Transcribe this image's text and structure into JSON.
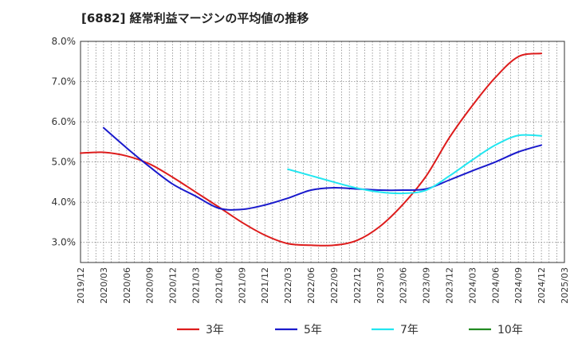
{
  "chart_data": {
    "type": "line",
    "title": "[6882]  経常利益マージンの平均値の推移",
    "xlabel": "",
    "ylabel": "",
    "x_ticks": [
      "2019/12",
      "2020/03",
      "2020/06",
      "2020/09",
      "2020/12",
      "2021/03",
      "2021/06",
      "2021/09",
      "2021/12",
      "2022/03",
      "2022/06",
      "2022/09",
      "2022/12",
      "2023/03",
      "2023/06",
      "2023/09",
      "2023/12",
      "2024/03",
      "2024/06",
      "2024/09",
      "2024/12",
      "2025/03"
    ],
    "y_ticks": [
      "3.0%",
      "4.0%",
      "5.0%",
      "6.0%",
      "7.0%",
      "8.0%"
    ],
    "ylim": [
      2.5,
      8.0
    ],
    "grid": true,
    "legend_position": "bottom",
    "series": [
      {
        "name": "3年",
        "color": "#dd1c1c",
        "points": [
          [
            "2019/12",
            5.22
          ],
          [
            "2020/03",
            5.24
          ],
          [
            "2020/06",
            5.15
          ],
          [
            "2020/09",
            4.95
          ],
          [
            "2020/12",
            4.62
          ],
          [
            "2021/03",
            4.25
          ],
          [
            "2021/06",
            3.88
          ],
          [
            "2021/09",
            3.5
          ],
          [
            "2021/12",
            3.18
          ],
          [
            "2022/03",
            2.97
          ],
          [
            "2022/06",
            2.93
          ],
          [
            "2022/09",
            2.93
          ],
          [
            "2022/12",
            3.05
          ],
          [
            "2023/03",
            3.4
          ],
          [
            "2023/06",
            3.95
          ],
          [
            "2023/09",
            4.65
          ],
          [
            "2023/12",
            5.6
          ],
          [
            "2024/03",
            6.4
          ],
          [
            "2024/06",
            7.1
          ],
          [
            "2024/09",
            7.62
          ],
          [
            "2024/12",
            7.7
          ]
        ]
      },
      {
        "name": "5年",
        "color": "#1a1acc",
        "points": [
          [
            "2020/03",
            5.85
          ],
          [
            "2020/06",
            5.35
          ],
          [
            "2020/09",
            4.88
          ],
          [
            "2020/12",
            4.45
          ],
          [
            "2021/03",
            4.15
          ],
          [
            "2021/06",
            3.85
          ],
          [
            "2021/09",
            3.82
          ],
          [
            "2021/12",
            3.93
          ],
          [
            "2022/03",
            4.1
          ],
          [
            "2022/06",
            4.3
          ],
          [
            "2022/09",
            4.36
          ],
          [
            "2022/12",
            4.33
          ],
          [
            "2023/03",
            4.3
          ],
          [
            "2023/06",
            4.3
          ],
          [
            "2023/09",
            4.33
          ],
          [
            "2023/12",
            4.55
          ],
          [
            "2024/03",
            4.78
          ],
          [
            "2024/06",
            5.0
          ],
          [
            "2024/09",
            5.25
          ],
          [
            "2024/12",
            5.42
          ]
        ]
      },
      {
        "name": "7年",
        "color": "#22e6f0",
        "points": [
          [
            "2022/03",
            4.82
          ],
          [
            "2022/06",
            4.66
          ],
          [
            "2022/09",
            4.5
          ],
          [
            "2022/12",
            4.35
          ],
          [
            "2023/03",
            4.25
          ],
          [
            "2023/06",
            4.22
          ],
          [
            "2023/09",
            4.3
          ],
          [
            "2023/12",
            4.65
          ],
          [
            "2024/03",
            5.05
          ],
          [
            "2024/06",
            5.42
          ],
          [
            "2024/09",
            5.66
          ],
          [
            "2024/12",
            5.65
          ]
        ]
      },
      {
        "name": "10年",
        "color": "#228b22",
        "points": []
      }
    ]
  }
}
